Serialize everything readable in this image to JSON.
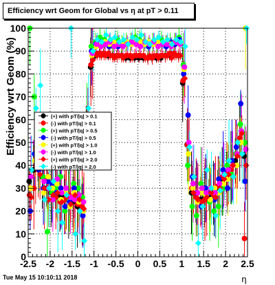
{
  "timestamp": "Tue May 15 10:10:11 2018",
  "chart_data": {
    "type": "scatter",
    "title": "Efficiency wrt Geom for Global vs   η at pT > 0.11",
    "xlabel": "η",
    "ylabel": "Efficiency wrt Geom (%)",
    "xlim": [
      -2.5,
      2.5
    ],
    "ylim": [
      0,
      100
    ],
    "xticks": [
      "-2.5",
      "-2",
      "-1.5",
      "-1",
      "-0.5",
      "0",
      "0.5",
      "1",
      "1.5",
      "2",
      "2.5"
    ],
    "yticks": [
      "0",
      "10",
      "20",
      "30",
      "40",
      "50",
      "60",
      "70",
      "80",
      "90",
      "100"
    ],
    "grid": true,
    "legend_position": "left-center",
    "series": [
      {
        "name": "(+) with pT/|q| > 0.1",
        "color": "#000000",
        "marker": "circle",
        "x": [
          -2.45,
          -2.35,
          -2.25,
          -2.15,
          -2.05,
          -1.95,
          -1.85,
          -1.75,
          -1.65,
          -1.55,
          -1.45,
          -1.35,
          -1.25,
          -1.15,
          -1.05,
          -0.95,
          -0.85,
          -0.75,
          -0.65,
          -0.55,
          -0.45,
          -0.35,
          -0.25,
          -0.15,
          -0.05,
          0.05,
          0.15,
          0.25,
          0.35,
          0.45,
          0.55,
          0.65,
          0.75,
          0.85,
          0.95,
          1.05,
          1.15,
          1.25,
          1.35,
          1.45,
          1.55,
          1.65,
          1.75,
          1.85,
          1.95,
          2.05,
          2.15,
          2.25,
          2.35,
          2.45
        ],
        "y": [
          33,
          38,
          40,
          35,
          30,
          28,
          30,
          27,
          26,
          25,
          24,
          22,
          20,
          60,
          83,
          88,
          89,
          89,
          88,
          88,
          88,
          88,
          87,
          87,
          87,
          87,
          87,
          87,
          87,
          87,
          87,
          88,
          88,
          89,
          88,
          76,
          49,
          28,
          27,
          25,
          26,
          27,
          28,
          30,
          33,
          37,
          39,
          42,
          50,
          44
        ]
      },
      {
        "name": "(-) with pT/|q| > 0.1",
        "color": "#ff0000",
        "marker": "circle",
        "x": [
          -2.45,
          -2.35,
          -2.25,
          -2.15,
          -2.05,
          -1.95,
          -1.85,
          -1.75,
          -1.65,
          -1.55,
          -1.45,
          -1.35,
          -1.25,
          -1.15,
          -1.05,
          -0.95,
          -0.85,
          -0.75,
          -0.65,
          -0.55,
          -0.45,
          -0.35,
          -0.25,
          -0.15,
          -0.05,
          0.05,
          0.15,
          0.25,
          0.35,
          0.45,
          0.55,
          0.65,
          0.75,
          0.85,
          0.95,
          1.05,
          1.15,
          1.25,
          1.35,
          1.45,
          1.55,
          1.65,
          1.75,
          1.85,
          1.95,
          2.05,
          2.15,
          2.25,
          2.35,
          2.45
        ],
        "y": [
          27,
          30,
          38,
          42,
          34,
          30,
          26,
          24,
          25,
          27,
          26,
          23,
          22,
          55,
          84,
          89,
          89,
          89,
          89,
          88,
          88,
          88,
          88,
          88,
          88,
          88,
          88,
          87,
          87,
          88,
          88,
          88,
          89,
          89,
          88,
          77,
          49,
          30,
          26,
          24,
          25,
          28,
          27,
          31,
          35,
          36,
          38,
          45,
          52,
          8
        ]
      },
      {
        "name": "(+) with pT/|q| > 0.5",
        "color": "#00ff00",
        "marker": "circle",
        "x": [
          -2.45,
          -2.35,
          -2.25,
          -2.15,
          -2.05,
          -1.95,
          -1.85,
          -1.75,
          -1.65,
          -1.55,
          -1.45,
          -1.35,
          -1.25,
          -1.15,
          -1.05,
          -0.95,
          -0.85,
          -0.75,
          -0.65,
          -0.55,
          -0.45,
          -0.35,
          -0.25,
          -0.15,
          -0.05,
          0.05,
          0.15,
          0.25,
          0.35,
          0.45,
          0.55,
          0.65,
          0.75,
          0.85,
          0.95,
          1.05,
          1.15,
          1.25,
          1.35,
          1.45,
          1.55,
          1.65,
          1.75,
          1.85,
          1.95,
          2.05,
          2.15,
          2.25,
          2.35,
          2.45
        ],
        "y": [
          100,
          70,
          45,
          35,
          11,
          28,
          30,
          35,
          20,
          25,
          32,
          30,
          26,
          60,
          92,
          94,
          96,
          95,
          93,
          92,
          95,
          93,
          94,
          94,
          96,
          95,
          94,
          92,
          94,
          93,
          95,
          93,
          94,
          94,
          96,
          84,
          40,
          22,
          18,
          32,
          27,
          24,
          20,
          22,
          30,
          40,
          36,
          45,
          58,
          50
        ]
      },
      {
        "name": "(-) with pT/|q| > 0.5",
        "color": "#0000ff",
        "marker": "circle",
        "x": [
          -2.45,
          -2.35,
          -2.25,
          -2.15,
          -2.05,
          -1.95,
          -1.85,
          -1.75,
          -1.65,
          -1.55,
          -1.45,
          -1.35,
          -1.25,
          -1.15,
          -1.05,
          -0.95,
          -0.85,
          -0.75,
          -0.65,
          -0.55,
          -0.45,
          -0.35,
          -0.25,
          -0.15,
          -0.05,
          0.05,
          0.15,
          0.25,
          0.35,
          0.45,
          0.55,
          0.65,
          0.75,
          0.85,
          0.95,
          1.05,
          1.15,
          1.25,
          1.35,
          1.45,
          1.55,
          1.65,
          1.75,
          1.85,
          1.95,
          2.05,
          2.15,
          2.25,
          2.35,
          2.45
        ],
        "y": [
          20,
          45,
          38,
          30,
          33,
          32,
          28,
          30,
          22,
          24,
          30,
          27,
          18,
          58,
          90,
          93,
          94,
          93,
          92,
          93,
          92,
          93,
          94,
          93,
          94,
          93,
          93,
          92,
          93,
          94,
          93,
          92,
          94,
          93,
          95,
          80,
          62,
          35,
          28,
          22,
          30,
          28,
          25,
          34,
          38,
          30,
          42,
          48,
          67,
          33
        ]
      },
      {
        "name": "(+) with pT/|q| > 1.0",
        "color": "#ffff00",
        "marker": "circle",
        "x": [
          -2.45,
          -2.35,
          -2.25,
          -2.15,
          -2.05,
          -1.95,
          -1.85,
          -1.75,
          -1.65,
          -1.55,
          -1.45,
          -1.35,
          -1.25,
          -1.15,
          -1.05,
          -0.95,
          -0.85,
          -0.75,
          -0.65,
          -0.55,
          -0.45,
          -0.35,
          -0.25,
          -0.15,
          -0.05,
          0.05,
          0.15,
          0.25,
          0.35,
          0.45,
          0.55,
          0.65,
          0.75,
          0.85,
          0.95,
          1.05,
          1.15,
          1.25,
          1.35,
          1.45,
          1.55,
          1.65,
          1.75,
          1.85,
          1.95,
          2.05,
          2.15,
          2.25,
          2.35,
          2.45
        ],
        "y": [
          30,
          42,
          44,
          28,
          35,
          30,
          32,
          25,
          28,
          22,
          28,
          24,
          20,
          52,
          88,
          92,
          93,
          94,
          93,
          94,
          93,
          93,
          94,
          93,
          95,
          94,
          93,
          94,
          93,
          94,
          93,
          94,
          93,
          94,
          93,
          82,
          45,
          30,
          24,
          28,
          27,
          25,
          30,
          28,
          32,
          34,
          40,
          40,
          50,
          100
        ]
      },
      {
        "name": "(-) with pT/|q| > 1.0",
        "color": "#ff00ff",
        "marker": "circle",
        "x": [
          -2.45,
          -2.35,
          -2.25,
          -2.15,
          -2.05,
          -1.95,
          -1.85,
          -1.75,
          -1.65,
          -1.55,
          -1.45,
          -1.35,
          -1.25,
          -1.15,
          -1.05,
          -0.95,
          -0.85,
          -0.75,
          -0.65,
          -0.55,
          -0.45,
          -0.35,
          -0.25,
          -0.15,
          -0.05,
          0.05,
          0.15,
          0.25,
          0.35,
          0.45,
          0.55,
          0.65,
          0.75,
          0.85,
          0.95,
          1.05,
          1.15,
          1.25,
          1.35,
          1.45,
          1.55,
          1.65,
          1.75,
          1.85,
          1.95,
          2.05,
          2.15,
          2.25,
          2.35,
          2.45
        ],
        "y": [
          35,
          50,
          40,
          33,
          30,
          25,
          34,
          28,
          30,
          26,
          25,
          27,
          24,
          56,
          89,
          93,
          92,
          93,
          94,
          92,
          93,
          92,
          93,
          94,
          93,
          92,
          94,
          93,
          94,
          92,
          93,
          93,
          92,
          94,
          93,
          83,
          50,
          32,
          28,
          30,
          28,
          30,
          28,
          32,
          36,
          38,
          40,
          45,
          55,
          47
        ]
      },
      {
        "name": "(+) with pT/|q| > 2.0",
        "color": "#ff0000",
        "marker": "diamond",
        "x": [
          -2.45,
          -2.35,
          -2.25,
          -2.15,
          -2.05,
          -1.95,
          -1.85,
          -1.75,
          -1.65,
          -1.55,
          -1.45,
          -1.35,
          -1.25,
          -1.15,
          -1.05,
          -0.95,
          -0.85,
          -0.75,
          -0.65,
          -0.55,
          -0.45,
          -0.35,
          -0.25,
          -0.15,
          -0.05,
          0.05,
          0.15,
          0.25,
          0.35,
          0.45,
          0.55,
          0.65,
          0.75,
          0.85,
          0.95,
          1.05,
          1.15,
          1.25,
          1.35,
          1.45,
          1.55,
          1.65,
          1.75,
          1.85,
          1.95,
          2.05,
          2.15,
          2.25,
          2.35,
          2.45
        ],
        "y": [
          26,
          40,
          36,
          30,
          25,
          27,
          28,
          24,
          26,
          23,
          27,
          25,
          21,
          58,
          86,
          88,
          88,
          88,
          88,
          87,
          88,
          87,
          88,
          87,
          88,
          88,
          87,
          88,
          88,
          87,
          88,
          88,
          87,
          88,
          88,
          78,
          48,
          28,
          25,
          24,
          26,
          28,
          26,
          30,
          34,
          36,
          40,
          44,
          54,
          40
        ]
      },
      {
        "name": "(-) with pT/|q| > 2.0",
        "color": "#00ffff",
        "marker": "diamond",
        "x": [
          -2.45,
          -2.35,
          -2.25,
          -2.15,
          -2.05,
          -1.95,
          -1.85,
          -1.75,
          -1.65,
          -1.55,
          -1.45,
          -1.35,
          -1.25,
          -1.15,
          -1.05,
          -0.95,
          -0.85,
          -0.75,
          -0.65,
          -0.55,
          -0.45,
          -0.35,
          -0.25,
          -0.15,
          -0.05,
          0.05,
          0.15,
          0.25,
          0.35,
          0.45,
          0.55,
          0.65,
          0.75,
          0.85,
          0.95,
          1.05,
          1.15,
          1.25,
          1.35,
          1.45,
          1.55,
          1.65,
          1.75,
          1.85,
          1.95,
          2.05,
          2.15,
          2.25,
          2.35,
          2.45
        ],
        "y": [
          38,
          65,
          75,
          25,
          30,
          33,
          20,
          15,
          27,
          100,
          10,
          20,
          7,
          65,
          90,
          95,
          94,
          97,
          95,
          96,
          94,
          95,
          93,
          96,
          95,
          97,
          94,
          93,
          95,
          96,
          94,
          95,
          93,
          95,
          94,
          92,
          48,
          35,
          6,
          22,
          38,
          30,
          18,
          29,
          36,
          42,
          35,
          50,
          45,
          100
        ]
      }
    ]
  }
}
